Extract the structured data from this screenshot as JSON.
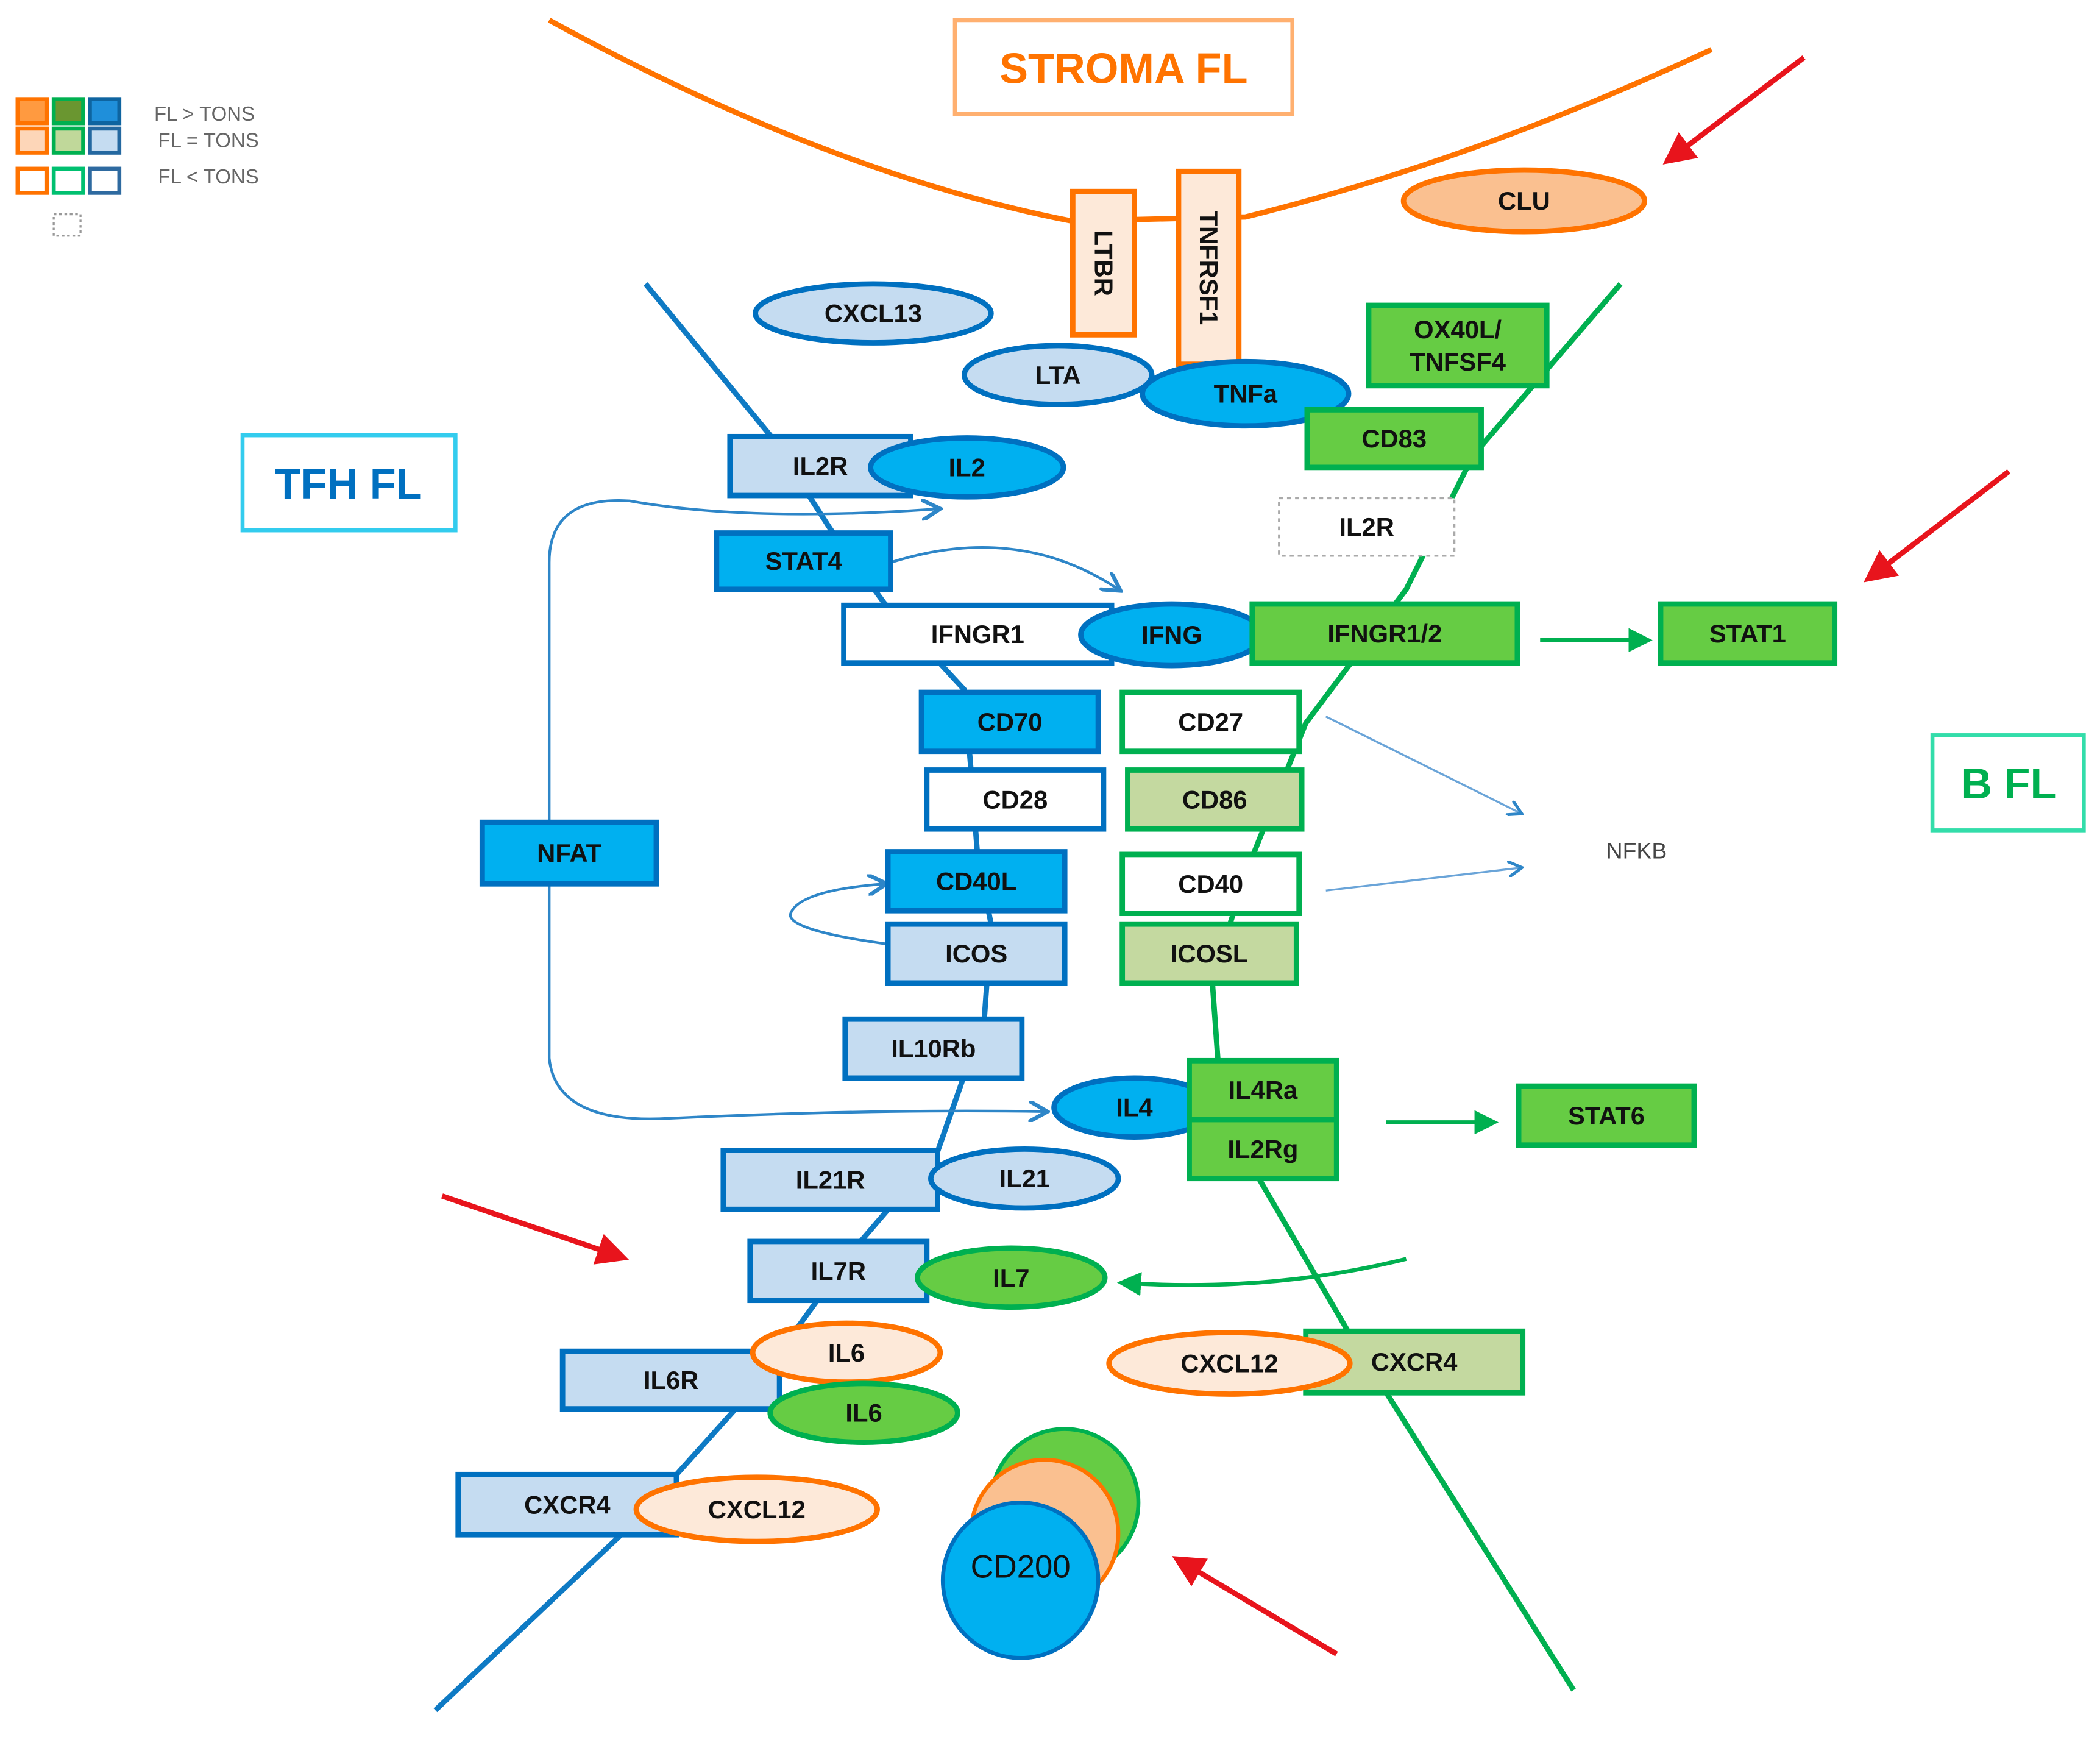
{
  "colors": {
    "orange": "#ff7300",
    "orange_light": "#fde9d9",
    "orange_mid": "#fac090",
    "blue_border": "#0070c0",
    "blue_up": "#00b0f0",
    "blue_equal": "#c5dcf1",
    "green_border": "#00b050",
    "green_up": "#66cc44",
    "green_equal": "#c4d9a0",
    "red_arrow": "#e8141c"
  },
  "legend": {
    "up": "FL > TONS",
    "equal": "FL = TONS",
    "down": "FL < TONS"
  },
  "compartments": {
    "stroma": "STROMA FL",
    "tfh": "TFH FL",
    "b": "B FL"
  },
  "nodes": {
    "ltbr": {
      "label": "LTBR",
      "cell": "stroma",
      "level": "equal"
    },
    "tnfrsf1": {
      "label": "TNFRSF1",
      "cell": "stroma",
      "level": "equal"
    },
    "clu": {
      "label": "CLU",
      "cell": "stroma",
      "level": "mid"
    },
    "cxcl13": {
      "label": "CXCL13",
      "cell": "tfh",
      "level": "equal"
    },
    "lta": {
      "label": "LTA",
      "cell": "tfh",
      "level": "equal"
    },
    "tnfa": {
      "label": "TNFa",
      "cell": "tfh",
      "level": "up"
    },
    "ox40l": {
      "label": "OX40L/\nTNFSF4",
      "cell": "b",
      "level": "up"
    },
    "cd83": {
      "label": "CD83",
      "cell": "b",
      "level": "up"
    },
    "il2r_b": {
      "label": "IL2R",
      "cell": "none",
      "level": "none"
    },
    "il2r": {
      "label": "IL2R",
      "cell": "tfh",
      "level": "equal"
    },
    "il2": {
      "label": "IL2",
      "cell": "tfh",
      "level": "up"
    },
    "stat4": {
      "label": "STAT4",
      "cell": "tfh",
      "level": "up"
    },
    "ifngr1": {
      "label": "IFNGR1",
      "cell": "tfh",
      "level": "down"
    },
    "ifng": {
      "label": "IFNG",
      "cell": "tfh",
      "level": "up"
    },
    "ifngr12": {
      "label": "IFNGR1/2",
      "cell": "b",
      "level": "up"
    },
    "stat1": {
      "label": "STAT1",
      "cell": "b",
      "level": "up"
    },
    "cd70": {
      "label": "CD70",
      "cell": "tfh",
      "level": "up"
    },
    "cd27": {
      "label": "CD27",
      "cell": "b",
      "level": "down"
    },
    "cd28": {
      "label": "CD28",
      "cell": "tfh",
      "level": "down"
    },
    "cd86": {
      "label": "CD86",
      "cell": "b",
      "level": "equal"
    },
    "nfkb": {
      "label": "NFKB",
      "cell": "none",
      "level": "text"
    },
    "nfat": {
      "label": "NFAT",
      "cell": "tfh",
      "level": "up"
    },
    "cd40l": {
      "label": "CD40L",
      "cell": "tfh",
      "level": "up"
    },
    "cd40": {
      "label": "CD40",
      "cell": "b",
      "level": "down"
    },
    "icos": {
      "label": "ICOS",
      "cell": "tfh",
      "level": "equal"
    },
    "icosl": {
      "label": "ICOSL",
      "cell": "b",
      "level": "equal"
    },
    "il10rb": {
      "label": "IL10Rb",
      "cell": "tfh",
      "level": "equal"
    },
    "il4": {
      "label": "IL4",
      "cell": "tfh",
      "level": "up"
    },
    "il4ra": {
      "label": "IL4Ra",
      "cell": "b",
      "level": "up"
    },
    "il2rg": {
      "label": "IL2Rg",
      "cell": "b",
      "level": "up"
    },
    "stat6": {
      "label": "STAT6",
      "cell": "b",
      "level": "up"
    },
    "il21r": {
      "label": "IL21R",
      "cell": "tfh",
      "level": "equal"
    },
    "il21": {
      "label": "IL21",
      "cell": "tfh",
      "level": "equal"
    },
    "il7r": {
      "label": "IL7R",
      "cell": "tfh",
      "level": "equal"
    },
    "il7": {
      "label": "IL7",
      "cell": "b",
      "level": "up"
    },
    "il6r": {
      "label": "IL6R",
      "cell": "tfh",
      "level": "equal"
    },
    "il6_s": {
      "label": "IL6",
      "cell": "stroma",
      "level": "equal"
    },
    "il6_b": {
      "label": "IL6",
      "cell": "b",
      "level": "up"
    },
    "cxcl12_r": {
      "label": "CXCL12",
      "cell": "stroma",
      "level": "equal"
    },
    "cxcr4_b": {
      "label": "CXCR4",
      "cell": "b",
      "level": "equal"
    },
    "cxcr4_t": {
      "label": "CXCR4",
      "cell": "tfh",
      "level": "equal"
    },
    "cxcl12_l": {
      "label": "CXCL12",
      "cell": "stroma",
      "level": "equal"
    },
    "cd200": {
      "label": "CD200",
      "cell": "tfh",
      "level": "up"
    }
  }
}
